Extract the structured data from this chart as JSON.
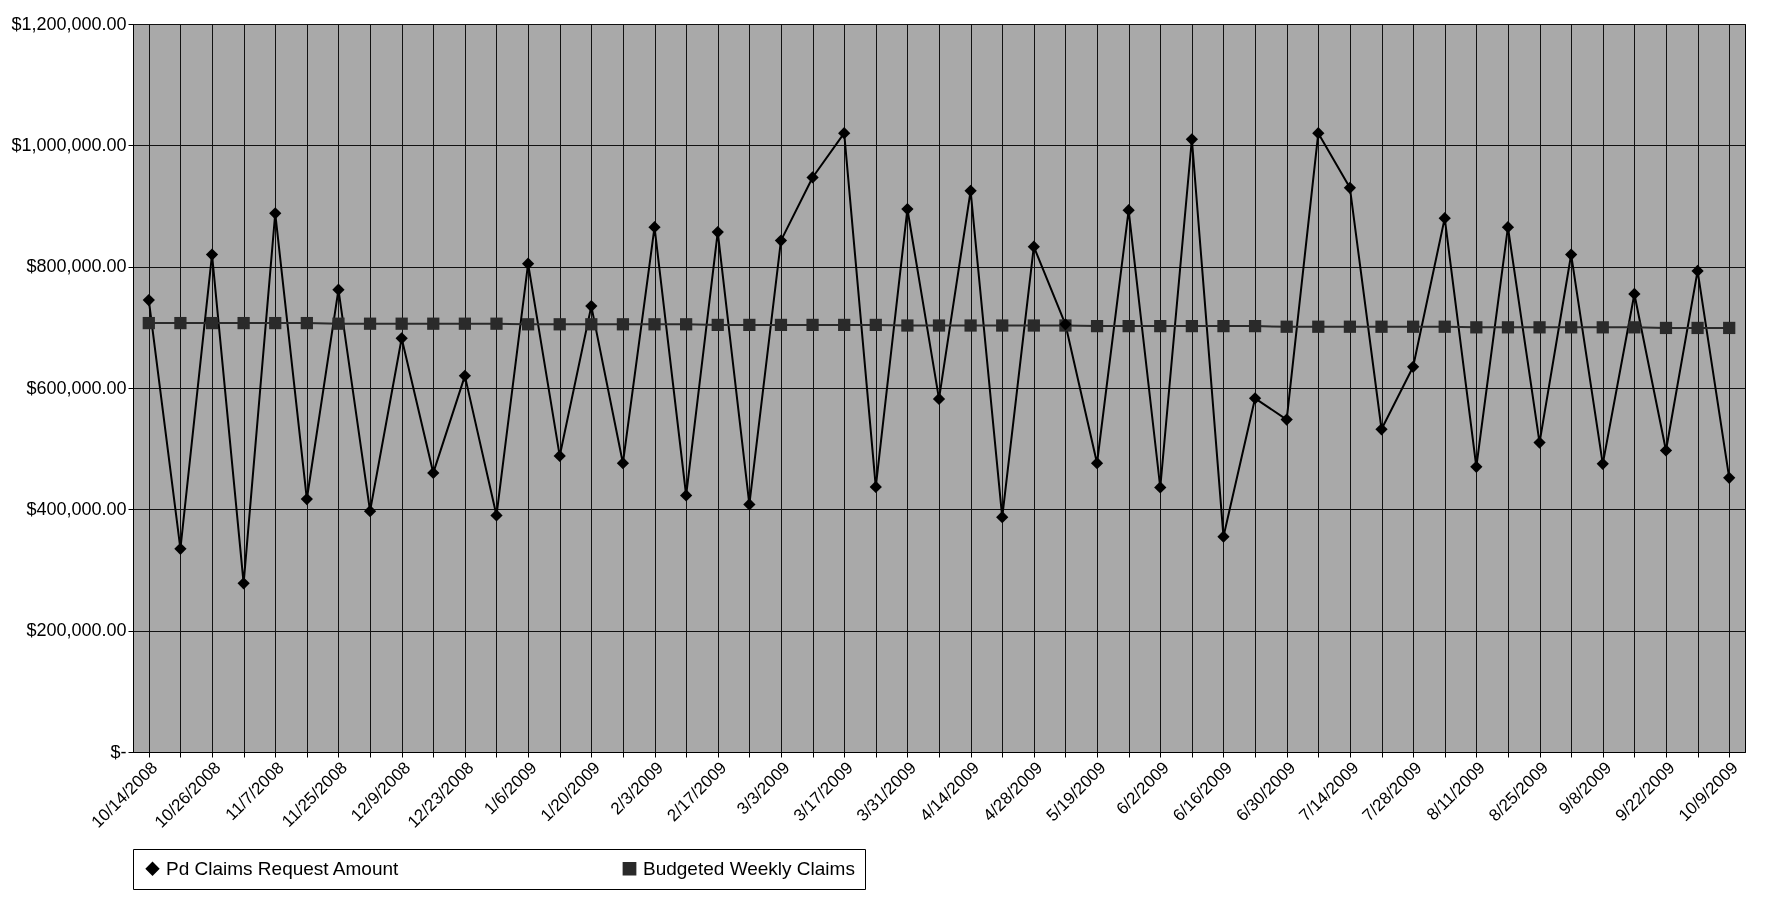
{
  "chart_data": {
    "type": "line",
    "categories": [
      "10/14/2008",
      null,
      "10/26/2008",
      null,
      "11/7/2008",
      null,
      "11/25/2008",
      null,
      "12/9/2008",
      null,
      "12/23/2008",
      null,
      "1/6/2009",
      null,
      "1/20/2009",
      null,
      "2/3/2009",
      null,
      "2/17/2009",
      null,
      "3/3/2009",
      null,
      "3/17/2009",
      null,
      "3/31/2009",
      null,
      "4/14/2009",
      null,
      "4/28/2009",
      null,
      "5/19/2009",
      null,
      "6/2/2009",
      null,
      "6/16/2009",
      null,
      "6/30/2009",
      null,
      "7/14/2009",
      null,
      "7/28/2009",
      null,
      "8/11/2009",
      null,
      "8/25/2009",
      null,
      "9/8/2009",
      null,
      "9/22/2009",
      null,
      "10/9/2009"
    ],
    "series": [
      {
        "name": "Pd Claims Request Amount",
        "color": "#000000",
        "marker": "diamond",
        "values": [
          745000,
          335000,
          820000,
          278000,
          888000,
          417000,
          762000,
          397000,
          682000,
          460000,
          620000,
          390000,
          805000,
          488000,
          735000,
          476000,
          865000,
          423000,
          857000,
          408000,
          843000,
          947000,
          1020000,
          437000,
          895000,
          582000,
          925000,
          387000,
          833000,
          705000,
          476000,
          893000,
          436000,
          1010000,
          355000,
          583000,
          548000,
          1020000,
          930000,
          532000,
          635000,
          880000,
          470000,
          865000,
          510000,
          820000,
          475000,
          755000,
          497000,
          793000,
          452000
        ]
      },
      {
        "name": "Budgeted Weekly Claims",
        "color": "#2a2a2a",
        "marker": "square",
        "values": [
          707000,
          707000,
          707000,
          707000,
          707000,
          707000,
          706000,
          706000,
          706000,
          706000,
          706000,
          706000,
          705000,
          705000,
          705000,
          705000,
          705000,
          705000,
          704000,
          704000,
          704000,
          704000,
          704000,
          704000,
          703000,
          703000,
          703000,
          703000,
          703000,
          703000,
          702000,
          702000,
          702000,
          702000,
          702000,
          702000,
          701000,
          701000,
          701000,
          701000,
          701000,
          701000,
          700000,
          700000,
          700000,
          700000,
          700000,
          700000,
          699000,
          699000,
          699000
        ]
      }
    ],
    "ylim": [
      0,
      1200000
    ],
    "yticks": [
      {
        "value": 0,
        "label": "$-"
      },
      {
        "value": 200000,
        "label": "$200,000.00"
      },
      {
        "value": 400000,
        "label": "$400,000.00"
      },
      {
        "value": 600000,
        "label": "$600,000.00"
      },
      {
        "value": 800000,
        "label": "$800,000.00"
      },
      {
        "value": 1000000,
        "label": "$1,000,000.00"
      },
      {
        "value": 1200000,
        "label": "$1,200,000.00"
      }
    ],
    "grid": true,
    "legend": "bottom",
    "line_style": "solid"
  }
}
